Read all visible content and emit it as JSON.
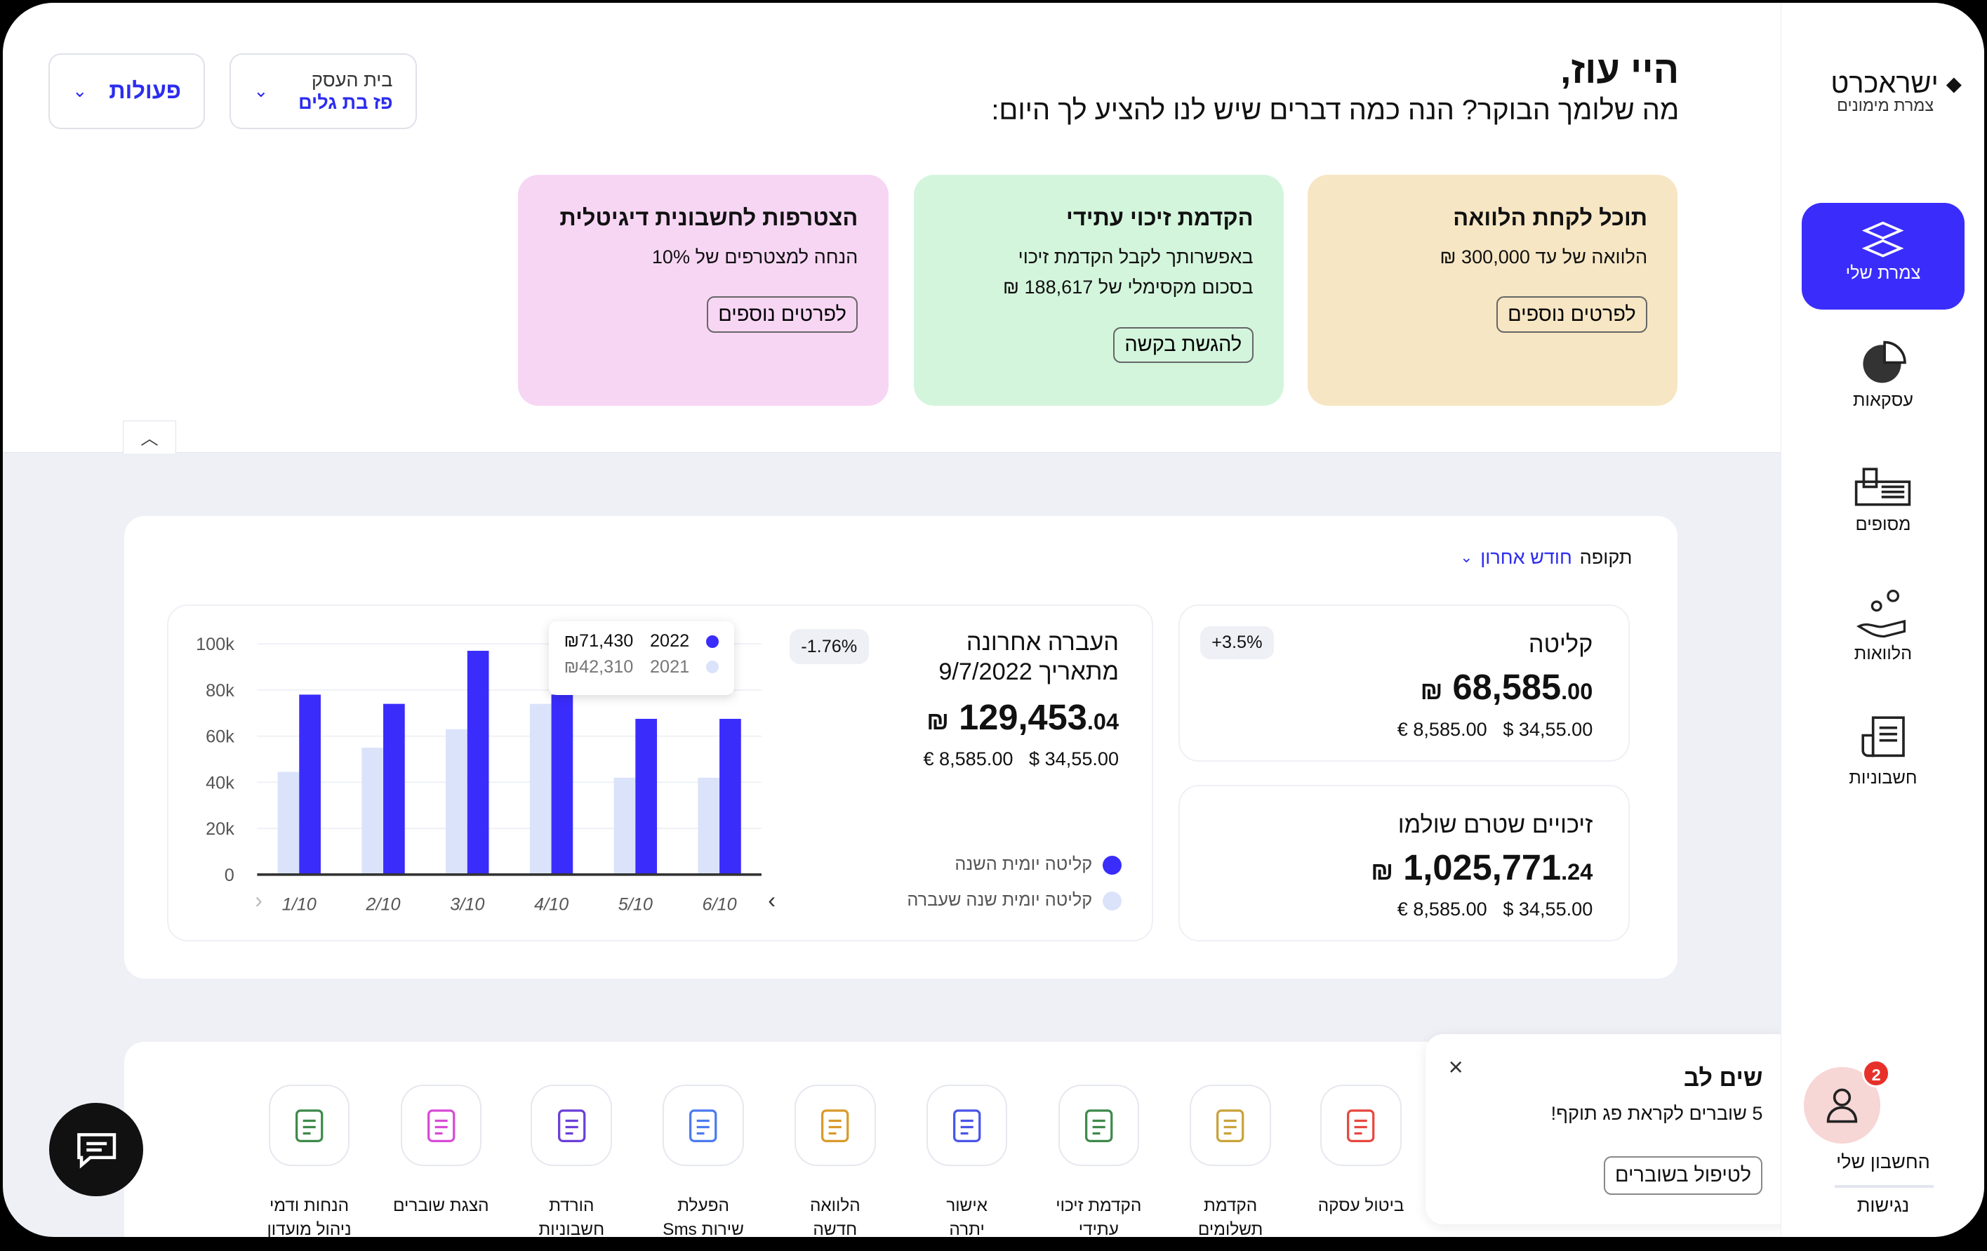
{
  "brand": {
    "name": "ישראכרט",
    "subtitle": "צמרת מימונים"
  },
  "header": {
    "greeting": "היי עוז,",
    "subtitle": "מה שלומך הבוקר?  הנה כמה דברים שיש לנו להציע לך היום:"
  },
  "top_buttons": {
    "business_label": "בית העסק",
    "business_value": "פז בת גלים",
    "actions_label": "פעולות"
  },
  "sidebar": {
    "items": [
      {
        "label": "צמרת שלי",
        "icon": "tzameret-icon",
        "active": true
      },
      {
        "label": "עסקאות",
        "icon": "pie-chart-icon"
      },
      {
        "label": "מסופים",
        "icon": "terminal-icon"
      },
      {
        "label": "הלוואות",
        "icon": "loan-hand-icon"
      },
      {
        "label": "חשבוניות",
        "icon": "invoice-icon"
      }
    ],
    "account_label": "החשבון שלי",
    "account_badge": "2",
    "accessibility_label": "נגישות"
  },
  "offers": [
    {
      "title": "תוכל לקחת הלוואה",
      "lines": [
        "הלוואה של עד 300,000 ₪"
      ],
      "button": "לפרטים נוספים",
      "color": "#f6e6c3"
    },
    {
      "title": "הקדמת זיכוי עתידי",
      "lines": [
        "באפשרותך לקבל הקדמת זיכוי",
        "בסכום מקסימלי של 188,617 ₪"
      ],
      "button": "להגשת בקשה",
      "color": "#d3f5dc"
    },
    {
      "title": "הצטרפות לחשבונית דיגיטלית",
      "lines": [
        "הנחה למצטרפים של 10%"
      ],
      "button": "לפרטים נוספים",
      "color": "#f7d6f4"
    }
  ],
  "period": {
    "label": "תקופה",
    "value": "חודש אחרון"
  },
  "last_transfer": {
    "title": "העברה אחרונה",
    "date": "מתאריך 9/7/2022",
    "amount_main": "129,453",
    "amount_cents": ".04",
    "currency": "₪",
    "eur": "€ 8,585.00",
    "usd": "$ 34,55.00",
    "change": "-1.76%"
  },
  "intake": {
    "title": "קליטה",
    "amount_main": "68,585",
    "amount_cents": ".00",
    "currency": "₪",
    "eur": "€ 8,585.00",
    "usd": "$ 34,55.00",
    "change": "+3.5%"
  },
  "credits": {
    "title": "זיכויים שטרם שולמו",
    "amount_main": "1,025,771",
    "amount_cents": ".24",
    "currency": "₪",
    "eur": "€ 8,585.00",
    "usd": "$ 34,55.00"
  },
  "legend": {
    "current": "קליטה יומית השנה",
    "previous": "קליטה יומית שנה שעברה"
  },
  "tooltip": {
    "rows": [
      {
        "year": "2022",
        "value": "₪71,430"
      },
      {
        "year": "2021",
        "value": "₪42,310"
      }
    ]
  },
  "chart_data": {
    "type": "bar",
    "categories": [
      "1/10",
      "2/10",
      "3/10",
      "4/10",
      "5/10",
      "6/10"
    ],
    "series": [
      {
        "name": "2021",
        "values": [
          44500,
          55000,
          63000,
          74000,
          42000,
          42000
        ],
        "color": "#dbe3fb"
      },
      {
        "name": "2022",
        "values": [
          78000,
          74000,
          97000,
          78000,
          67500,
          67500
        ],
        "color": "#3a2dfc"
      }
    ],
    "yticks": [
      "0",
      "20k",
      "40k",
      "60k",
      "80k",
      "100k"
    ],
    "ylim": [
      0,
      100000
    ]
  },
  "quick_actions": [
    {
      "label": [
        "ביטול עסקה"
      ],
      "icon": "cancel-bag-icon",
      "color": "#e8473f"
    },
    {
      "label": [
        "הקדמת",
        "תשלומים"
      ],
      "icon": "advance-payments-icon",
      "color": "#c9a23a"
    },
    {
      "label": [
        "הקדמת זיכוי",
        "עתידי"
      ],
      "icon": "future-credit-icon",
      "color": "#3f8a4b"
    },
    {
      "label": [
        "אישור",
        "יתרה"
      ],
      "icon": "calendar-icon",
      "color": "#4a55e8"
    },
    {
      "label": [
        "הלוואה",
        "חדשה"
      ],
      "icon": "new-loan-icon",
      "color": "#d99a2b"
    },
    {
      "label": [
        "הפעלת",
        "שירות Sms"
      ],
      "icon": "sms-icon",
      "color": "#4a7bf0"
    },
    {
      "label": [
        "הורדת",
        "חשבוניות"
      ],
      "icon": "download-icon",
      "color": "#6b3fd9"
    },
    {
      "label": [
        "הצגת שוברים"
      ],
      "icon": "voucher-icon",
      "color": "#d84bd6"
    },
    {
      "label": [
        "הנחות ודמי",
        "ניהול מועדון"
      ],
      "icon": "tag-icon",
      "color": "#3f8a4b"
    }
  ],
  "notice": {
    "title": "שים לב",
    "text": "5 שוברים לקראת פג תוקף!",
    "button": "לטיפול בשוברים"
  }
}
